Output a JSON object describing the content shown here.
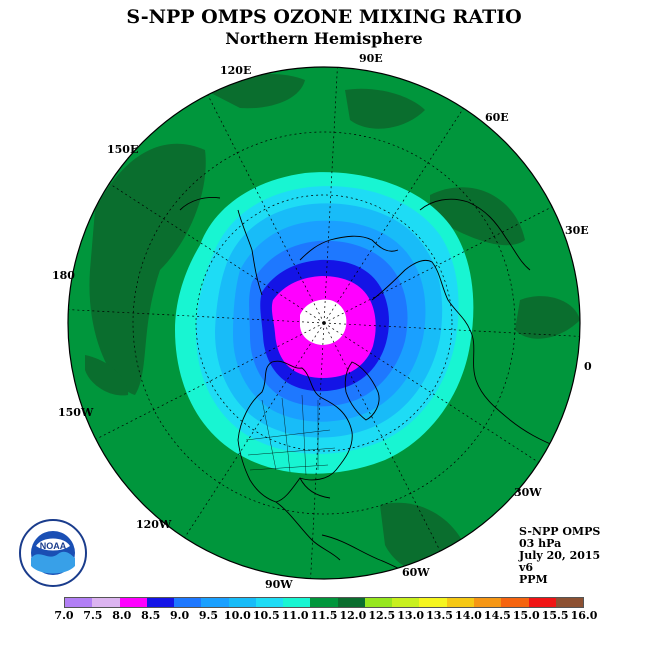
{
  "title": "S-NPP OMPS OZONE MIXING RATIO",
  "subtitle": "Northern Hemisphere",
  "longitude_labels": [
    "90E",
    "60E",
    "30E",
    "0",
    "30W",
    "60W",
    "90W",
    "120W",
    "150W",
    "180",
    "150E",
    "120E"
  ],
  "info": {
    "instrument": "S-NPP OMPS",
    "level": "03 hPa",
    "date": "July 20, 2015",
    "version": "v6",
    "units": "PPM"
  },
  "colorbar": {
    "ticks": [
      "7.0",
      "7.5",
      "8.0",
      "8.5",
      "9.0",
      "9.5",
      "10.0",
      "10.5",
      "11.0",
      "11.5",
      "12.0",
      "12.5",
      "13.0",
      "13.5",
      "14.0",
      "14.5",
      "15.0",
      "15.5",
      "16.0"
    ],
    "colors": [
      "#b27ff5",
      "#dcb4f0",
      "#ff00ff",
      "#1414e6",
      "#1e78ff",
      "#1aa0ff",
      "#18bcf8",
      "#1edcf5",
      "#18f5d2",
      "#00963c",
      "#0a6e2e",
      "#96e61e",
      "#c8f01e",
      "#f5f51e",
      "#f5c814",
      "#f59614",
      "#f5640f",
      "#f01414",
      "#8c5032"
    ]
  },
  "legend_text": {
    "colors": {
      "background": "#00963c",
      "dark_green": "#0a6e2e"
    }
  },
  "logo": {
    "text": "NOAA",
    "ring_text": "NATIONAL OCEANIC AND ATMOSPHERIC ADMINISTRATION · U.S. DEPARTMENT OF COMMERCE"
  }
}
